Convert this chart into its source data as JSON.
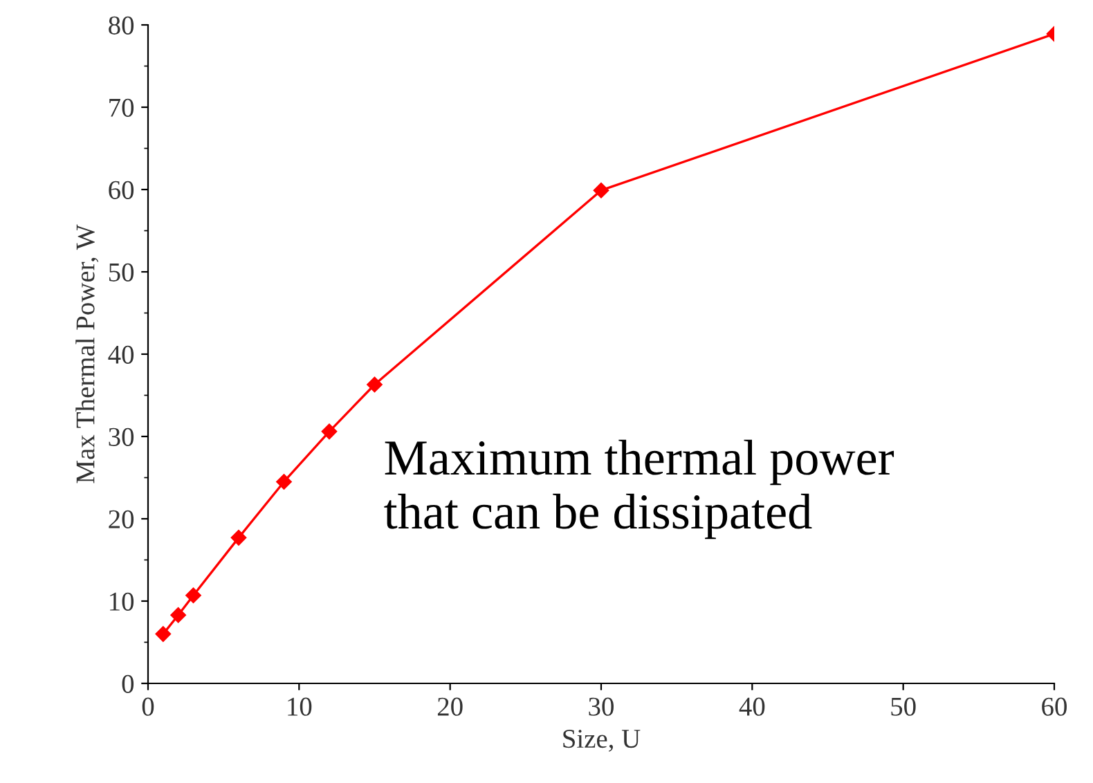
{
  "chart_data": {
    "type": "line",
    "xlabel": "Size, U",
    "ylabel": "Max Thermal Power, W",
    "x": [
      1,
      2,
      3,
      6,
      9,
      12,
      15,
      30,
      60
    ],
    "series": [
      {
        "color": "#ff0000",
        "values": [
          6.0,
          8.3,
          10.7,
          17.7,
          24.5,
          30.6,
          36.3,
          59.9,
          78.9
        ]
      }
    ],
    "marker": "diamond",
    "line_style": "solid",
    "grid": false,
    "legend": false,
    "xlim": [
      0,
      60
    ],
    "xticks": [
      0,
      10,
      20,
      30,
      40,
      50,
      60
    ],
    "ylim": [
      0,
      80
    ],
    "yticks": [
      0,
      10,
      20,
      30,
      40,
      50,
      60,
      70,
      80
    ],
    "annotations": [
      "Maximum thermal power\nthat can be dissipated"
    ]
  }
}
